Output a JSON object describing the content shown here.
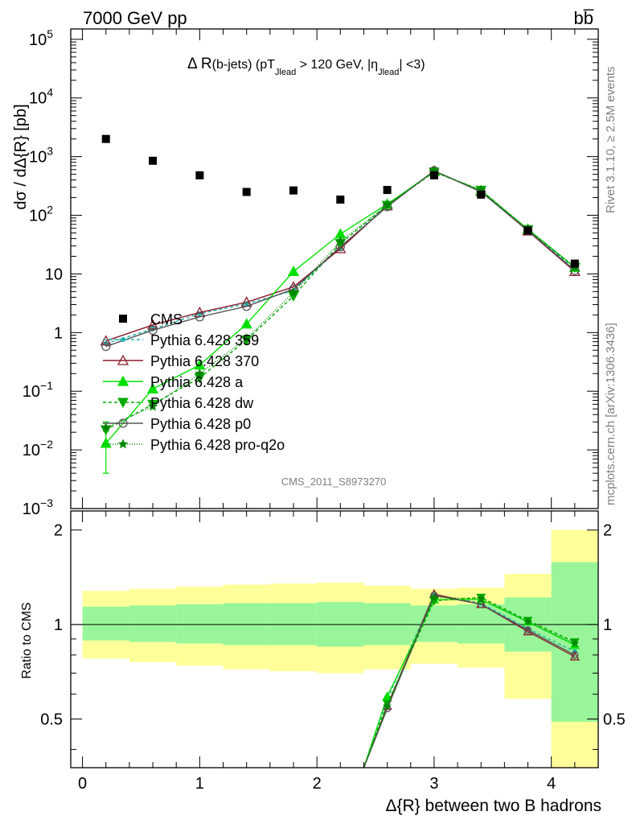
{
  "header": {
    "left": "7000 GeV pp",
    "right": "bb̅"
  },
  "side_labels": {
    "rivet": "Rivet 3.1.10, ≥ 2.5M events",
    "mcplots": "mcplots.cern.ch [arXiv:1306.3436]"
  },
  "chart_data": [
    {
      "type": "line",
      "title": "Δ R(b-jets) (pT_Jlead >  120 GeV, |η_Jlead| <3)",
      "title_parts": {
        "a": "Δ R",
        "b": "(b-jets) (pT",
        "c": "Jlead",
        "d": " >  120 GeV, |η",
        "e": "Jlead",
        "f": "| <3)"
      },
      "ylabel": "dσ / dΔ{R} [pb]",
      "xlabel": "",
      "yscale": "log",
      "ylim": [
        0.001,
        150000
      ],
      "xlim": [
        -0.1,
        4.4
      ],
      "watermark": "CMS_2011_S8973270",
      "y_tick_labels": [
        {
          "v": 0.001,
          "b": "10",
          "e": "−3"
        },
        {
          "v": 0.01,
          "b": "10",
          "e": "−2"
        },
        {
          "v": 0.1,
          "b": "10",
          "e": "−1"
        },
        {
          "v": 1,
          "b": "1",
          "e": ""
        },
        {
          "v": 10,
          "b": "10",
          "e": ""
        },
        {
          "v": 100,
          "b": "10",
          "e": "2"
        },
        {
          "v": 1000,
          "b": "10",
          "e": "3"
        },
        {
          "v": 10000,
          "b": "10",
          "e": "4"
        },
        {
          "v": 100000,
          "b": "10",
          "e": "5"
        }
      ],
      "data": {
        "name": "CMS",
        "x": [
          0.2,
          0.6,
          1.0,
          1.4,
          1.8,
          2.2,
          2.6,
          3.0,
          3.4,
          3.8,
          4.2
        ],
        "y": [
          2000,
          850,
          480,
          250,
          265,
          185,
          270,
          480,
          225,
          55,
          15
        ]
      },
      "x": [
        0.2,
        0.6,
        1.0,
        1.4,
        1.8,
        2.2,
        2.6,
        3.0,
        3.4,
        3.8,
        4.2
      ],
      "series": [
        {
          "name": "Pythia 6.428 359",
          "color": "#20b2aa",
          "dash": "4,3",
          "marker": "dot",
          "y": [
            0.65,
            1.15,
            2.1,
            3.1,
            5.2,
            28,
            150,
            560,
            260,
            57,
            12
          ]
        },
        {
          "name": "Pythia 6.428 370",
          "color": "#8b1a2b",
          "dash": "",
          "marker": "tri-open",
          "y": [
            0.72,
            1.35,
            2.2,
            3.3,
            6.0,
            27,
            145,
            570,
            255,
            54,
            11
          ]
        },
        {
          "name": "Pythia 6.428 a",
          "color": "#00e000",
          "dash": "",
          "marker": "tri",
          "y": [
            0.013,
            0.11,
            0.28,
            1.4,
            11,
            48,
            155,
            555,
            262,
            58,
            13
          ],
          "err_first": [
            0.004,
            0.03
          ]
        },
        {
          "name": "Pythia 6.428 dw",
          "color": "#00aa00",
          "dash": "4,3",
          "marker": "tri-down",
          "y": [
            0.022,
            0.06,
            0.17,
            0.75,
            4.2,
            33,
            148,
            545,
            268,
            57,
            13
          ]
        },
        {
          "name": "Pythia 6.428 p0",
          "color": "#555555",
          "dash": "",
          "marker": "circle-open",
          "y": [
            0.58,
            1.1,
            1.85,
            2.8,
            5.5,
            29,
            140,
            575,
            250,
            55,
            11.5
          ]
        },
        {
          "name": "Pythia 6.428 pro-q2o",
          "color": "#008800",
          "dash": "1,2",
          "marker": "star",
          "y": [
            0.024,
            0.055,
            0.2,
            0.8,
            4.8,
            36,
            150,
            560,
            270,
            57,
            13
          ]
        }
      ]
    },
    {
      "type": "line",
      "ylabel": "Ratio to CMS",
      "xlabel": "Δ{R} between two B hadrons",
      "ylim": [
        0.35,
        2.3
      ],
      "xlim": [
        -0.1,
        4.4
      ],
      "y_tick_labels": [
        "0.5",
        "1",
        "2"
      ],
      "x_tick_labels": [
        "0",
        "1",
        "2",
        "3",
        "4"
      ],
      "bands": {
        "edges": [
          0.0,
          0.4,
          0.8,
          1.2,
          1.6,
          2.0,
          2.4,
          2.8,
          3.2,
          3.6,
          4.0,
          4.4
        ],
        "yellow": [
          [
            0.78,
            1.28
          ],
          [
            0.76,
            1.3
          ],
          [
            0.74,
            1.32
          ],
          [
            0.72,
            1.34
          ],
          [
            0.71,
            1.35
          ],
          [
            0.7,
            1.36
          ],
          [
            0.72,
            1.33
          ],
          [
            0.75,
            1.3
          ],
          [
            0.73,
            1.31
          ],
          [
            0.58,
            1.45
          ],
          [
            0.35,
            2.0
          ]
        ],
        "green": [
          [
            0.89,
            1.14
          ],
          [
            0.88,
            1.15
          ],
          [
            0.87,
            1.16
          ],
          [
            0.86,
            1.17
          ],
          [
            0.86,
            1.17
          ],
          [
            0.85,
            1.18
          ],
          [
            0.86,
            1.17
          ],
          [
            0.88,
            1.15
          ],
          [
            0.87,
            1.16
          ],
          [
            0.82,
            1.22
          ],
          [
            0.49,
            1.58
          ]
        ]
      },
      "ratios": {
        "Pythia 6.428 359": [
          0.58,
          1.24,
          1.17,
          0.97,
          0.82
        ],
        "Pythia 6.428 370": [
          0.55,
          1.25,
          1.16,
          0.95,
          0.79
        ],
        "Pythia 6.428 a": [
          0.59,
          1.2,
          1.2,
          1.02,
          0.86
        ],
        "Pythia 6.428 dw": [
          0.56,
          1.19,
          1.22,
          1.03,
          0.88
        ],
        "Pythia 6.428 p0": [
          0.54,
          1.24,
          1.16,
          0.96,
          0.8
        ],
        "Pythia 6.428 pro-q2o": [
          0.55,
          1.22,
          1.21,
          1.02,
          0.87
        ]
      },
      "ratio_x": [
        2.6,
        3.0,
        3.4,
        3.8,
        4.2
      ],
      "ratio_entry": {
        "x": 2.4,
        "y": 0.35
      }
    }
  ]
}
